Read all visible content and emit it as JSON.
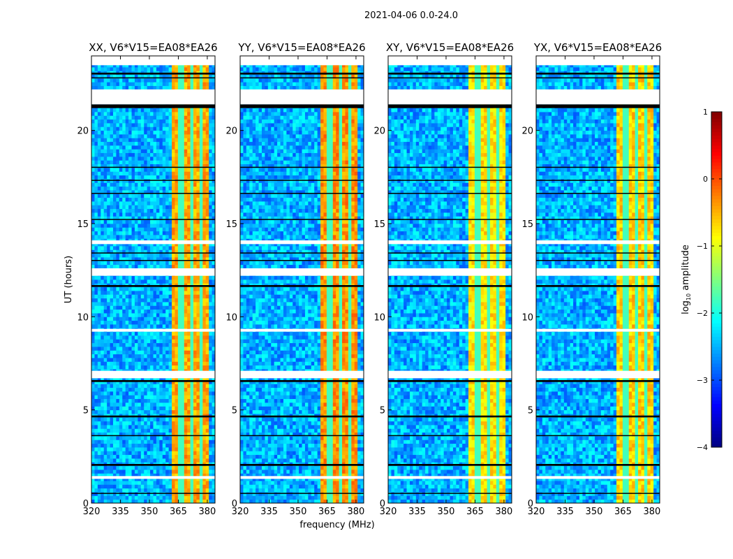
{
  "chart_data": {
    "type": "heatmap",
    "title": "2021-04-06 0.0-24.0",
    "xlabel": "frequency (MHz)",
    "ylabel": "UT (hours)",
    "xlim": [
      320,
      384
    ],
    "ylim": [
      0,
      24
    ],
    "xticks": [
      320,
      335,
      350,
      365,
      380
    ],
    "yticks": [
      0,
      5,
      10,
      15,
      20
    ],
    "panels": [
      {
        "title": "XX, V6*V15=EA08*EA26",
        "band_level": -0.45
      },
      {
        "title": "YY, V6*V15=EA08*EA26",
        "band_level": -0.35
      },
      {
        "title": "XY, V6*V15=EA08*EA26",
        "band_level": -0.75
      },
      {
        "title": "YX, V6*V15=EA08*EA26",
        "band_level": -0.65
      }
    ],
    "background_level": -2.5,
    "rfi_band_mhz": [
      361,
      381
    ],
    "channel_gaps_mhz": [
      366.5,
      371.5,
      376.5
    ],
    "flagged_blank_hours": [
      [
        23.5,
        24.0
      ],
      [
        21.4,
        22.2
      ],
      [
        13.9,
        14.1
      ],
      [
        12.2,
        12.6
      ],
      [
        9.2,
        9.35
      ],
      [
        6.7,
        7.1
      ],
      [
        1.3,
        1.45
      ]
    ],
    "flagged_black_hours": [
      [
        21.2,
        21.4
      ],
      [
        23.0,
        23.1
      ],
      [
        22.8,
        22.85
      ],
      [
        18.0,
        18.05
      ],
      [
        17.3,
        17.35
      ],
      [
        16.6,
        16.65
      ],
      [
        15.2,
        15.25
      ],
      [
        13.4,
        13.45
      ],
      [
        13.0,
        13.05
      ],
      [
        11.6,
        11.7
      ],
      [
        6.5,
        6.6
      ],
      [
        4.6,
        4.7
      ],
      [
        3.6,
        3.65
      ],
      [
        2.0,
        2.1
      ],
      [
        0.5,
        0.55
      ]
    ],
    "colorbar": {
      "label": "log10 amplitude",
      "range": [
        -4,
        1
      ],
      "ticks": [
        1,
        0,
        -1,
        -2,
        -3,
        -4
      ],
      "tick_labels": [
        "1",
        "0",
        "−1",
        "−2",
        "−3",
        "−4"
      ]
    }
  }
}
